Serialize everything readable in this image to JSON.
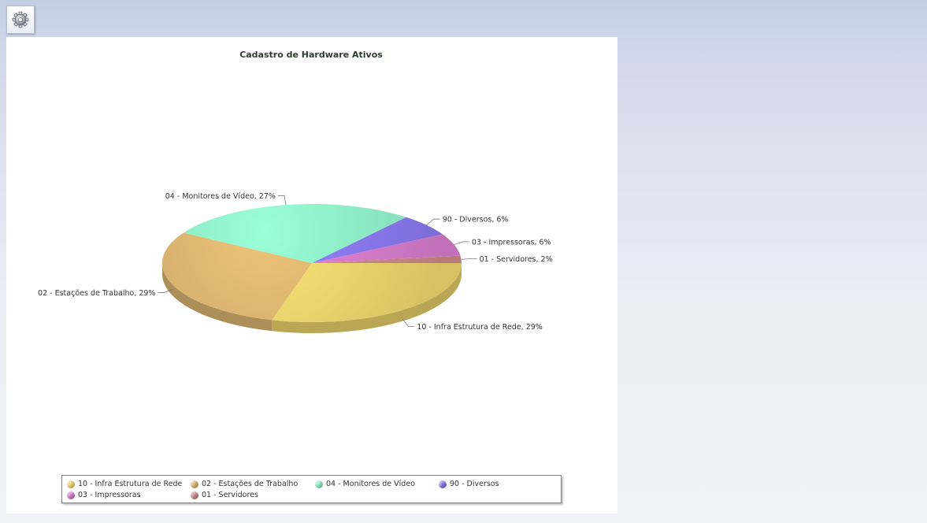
{
  "toolbar": {
    "settings_icon": "gear-icon"
  },
  "chart_data": {
    "type": "pie",
    "title": "Cadastro de Hardware Ativos",
    "slices": [
      {
        "name": "10 - Infra Estrutura de Rede",
        "percent": 29,
        "label": "10 - Infra Estrutura de Rede, 29%",
        "color": "#eed66e"
      },
      {
        "name": "02 - Estações de Trabalho",
        "percent": 29,
        "label": "02 - Estações de Trabalho, 29%",
        "color": "#ddb671"
      },
      {
        "name": "04 - Monitores de Vídeo",
        "percent": 27,
        "label": "04 - Monitores de Vídeo, 27%",
        "color": "#8ff0c8"
      },
      {
        "name": "90 - Diversos",
        "percent": 6,
        "label": "90 - Diversos, 6%",
        "color": "#8a78ee"
      },
      {
        "name": "03 - Impressoras",
        "percent": 6,
        "label": "03 - Impressoras, 6%",
        "color": "#d67ccb"
      },
      {
        "name": "01 - Servidores",
        "percent": 2,
        "label": "01 - Servidores, 2%",
        "color": "#cc8a8a"
      }
    ],
    "legend_placement": "bottom"
  }
}
